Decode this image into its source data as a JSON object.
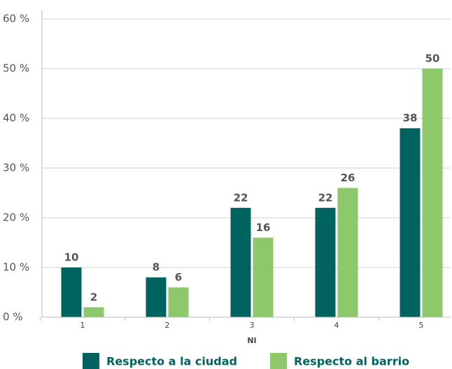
{
  "chart_data": {
    "type": "bar",
    "categories": [
      "1",
      "2",
      "3",
      "4",
      "5"
    ],
    "x_label": "NI",
    "series": [
      {
        "name": "Respecto a la ciudad",
        "color": "#00635f",
        "values": [
          10,
          8,
          22,
          22,
          38
        ]
      },
      {
        "name": "Respecto al barrio",
        "color": "#8dc86b",
        "values": [
          2,
          6,
          16,
          26,
          50
        ]
      }
    ],
    "ylim": [
      0,
      60
    ],
    "yticks": [
      {
        "value": 0,
        "label": "0 %"
      },
      {
        "value": 10,
        "label": "10 %"
      },
      {
        "value": 20,
        "label": "20 %"
      },
      {
        "value": 30,
        "label": "30 %"
      },
      {
        "value": 40,
        "label": "40 %"
      },
      {
        "value": 50,
        "label": "50 %"
      },
      {
        "value": 60,
        "label": "60 %"
      }
    ],
    "grid": true,
    "legend": "bottom"
  }
}
